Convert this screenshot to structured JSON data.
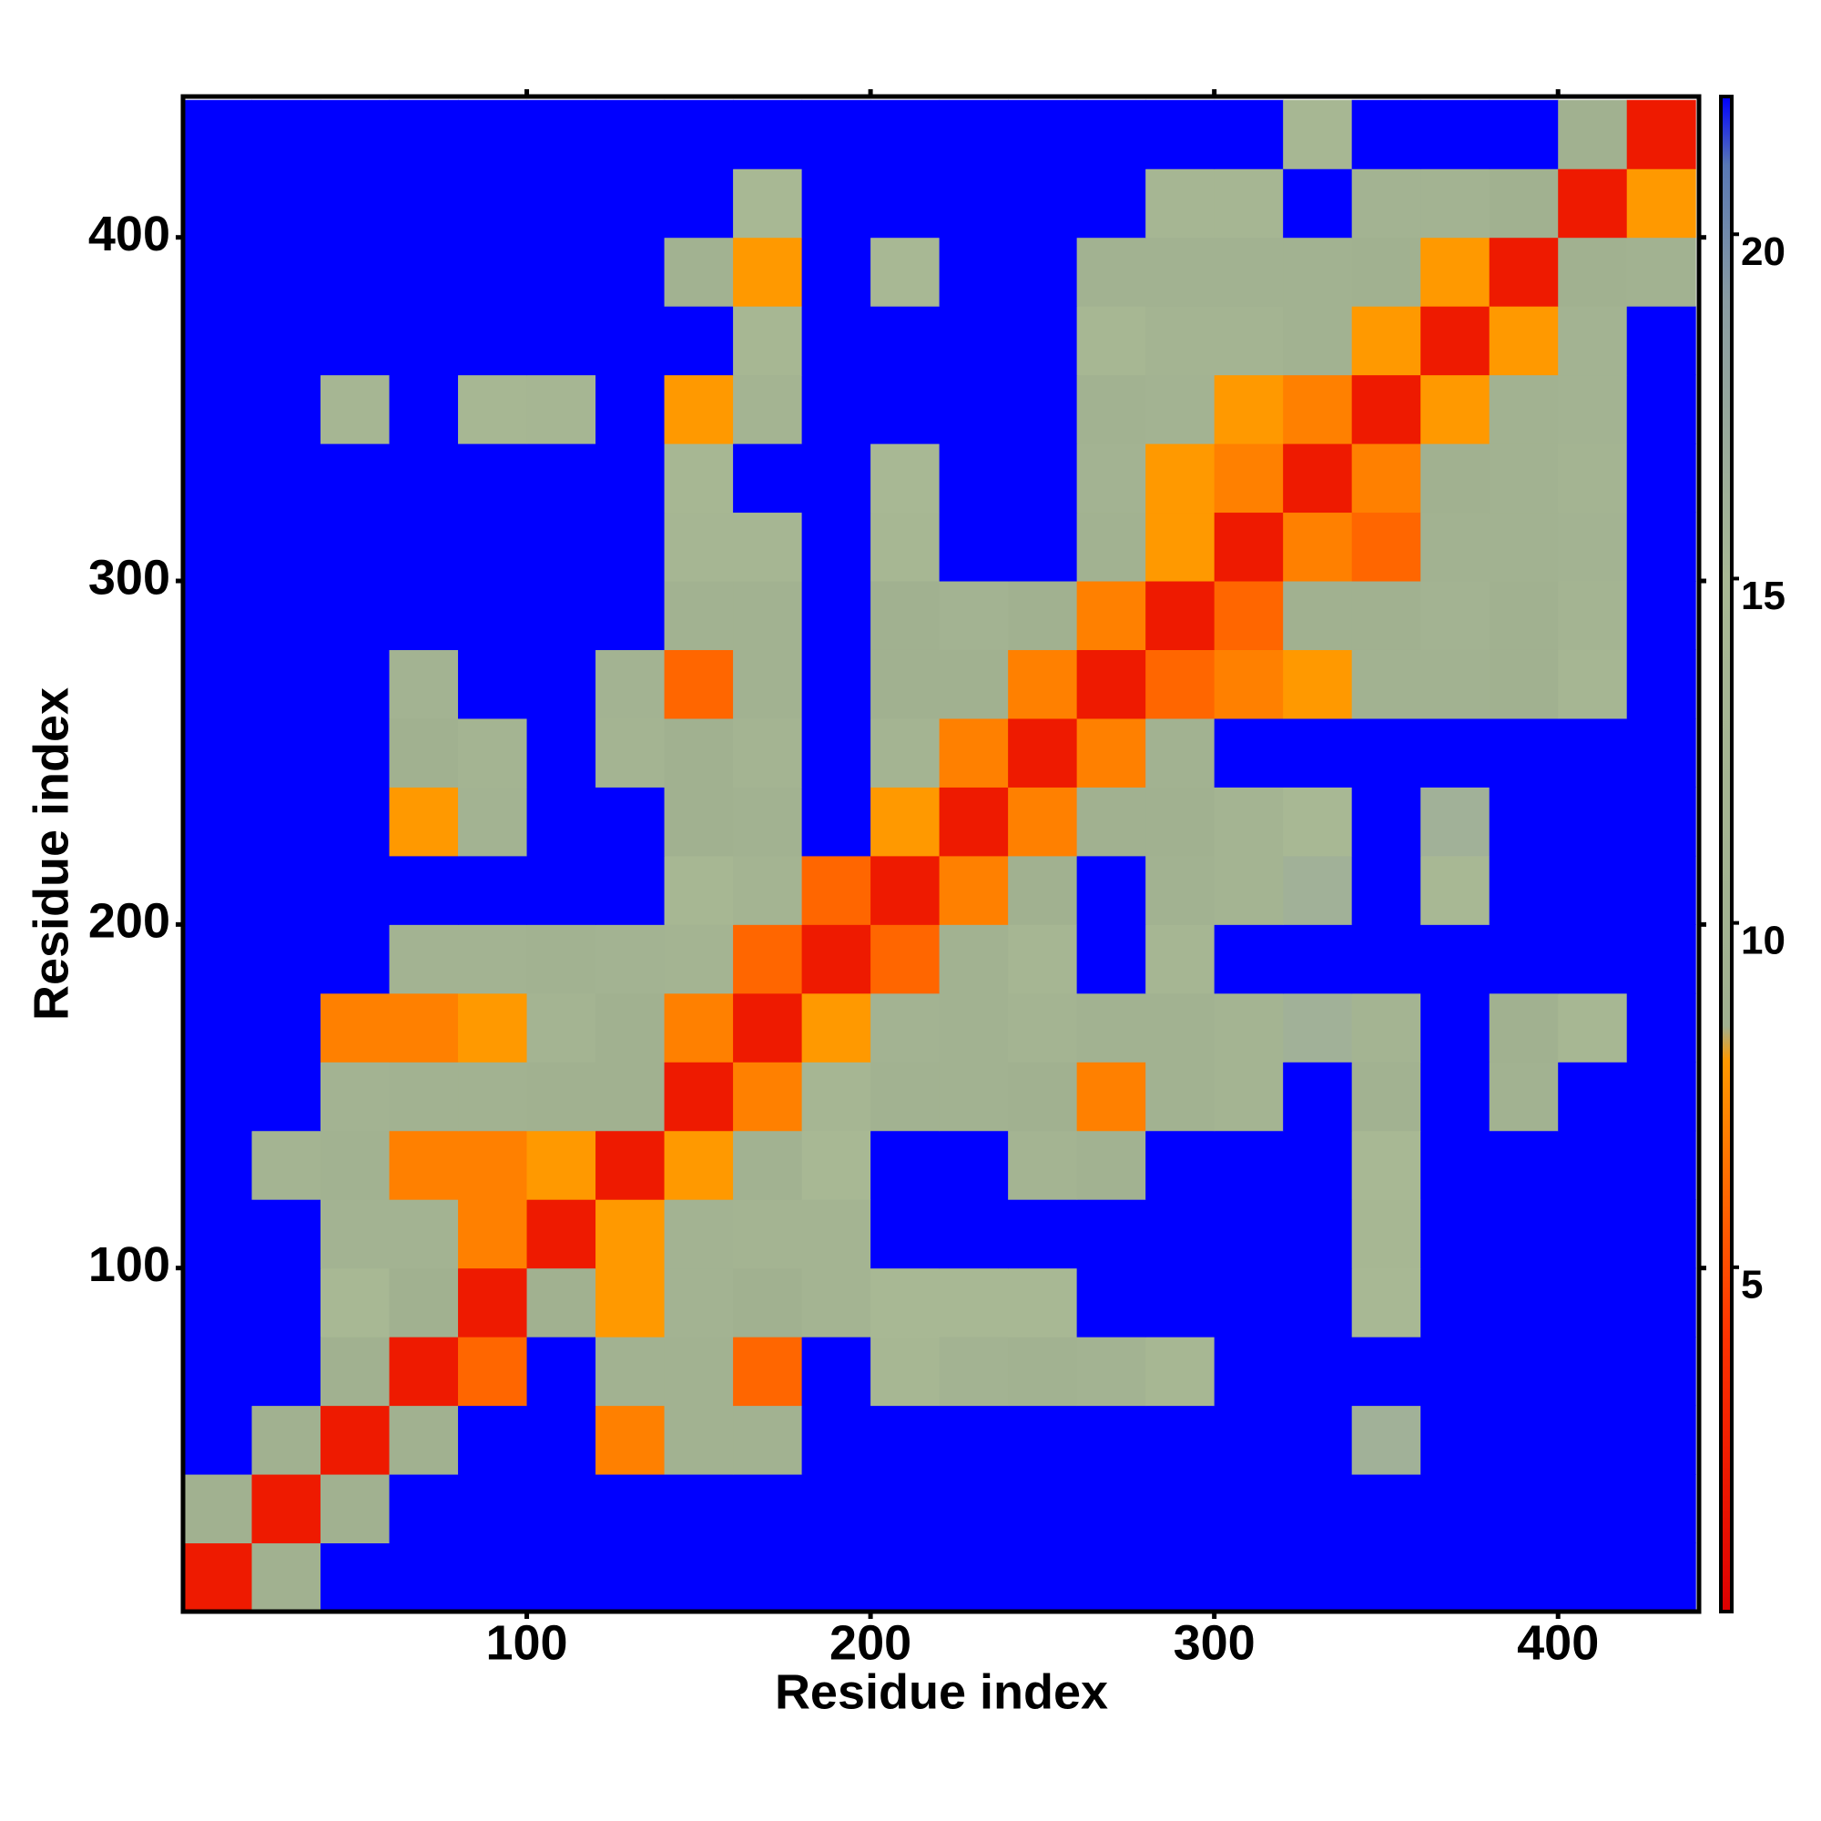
{
  "chart_data": {
    "type": "heatmap",
    "x_label": "Residue index",
    "y_label": "Residue index",
    "xlim": [
      0,
      441
    ],
    "ylim": [
      0,
      441
    ],
    "xticks": [
      100,
      200,
      300,
      400
    ],
    "yticks": [
      100,
      200,
      300,
      400
    ],
    "x_bins": [
      0,
      20,
      40,
      60,
      80,
      100,
      120,
      140,
      160,
      180,
      200,
      220,
      240,
      260,
      280,
      300,
      320,
      340,
      360,
      380,
      400,
      420,
      440
    ],
    "y_bins": [
      0,
      20,
      40,
      60,
      80,
      100,
      120,
      140,
      160,
      180,
      200,
      220,
      240,
      260,
      280,
      300,
      320,
      340,
      360,
      380,
      400,
      420,
      440
    ],
    "zlim": [
      0,
      22
    ],
    "zticks": [
      5,
      10,
      15,
      20
    ],
    "colorscale": [
      [
        0,
        "#dd0000"
      ],
      [
        4,
        "#ff3300"
      ],
      [
        8,
        "#ff9900"
      ],
      [
        8.5,
        "#a0b090"
      ],
      [
        15,
        "#a8b894"
      ],
      [
        19,
        "#8a9ca2"
      ],
      [
        21,
        "#5878b4"
      ],
      [
        22,
        "#0000ff"
      ]
    ],
    "z": [
      [
        2,
        9,
        22,
        22,
        22,
        22,
        22,
        22,
        22,
        22,
        22,
        22,
        22,
        22,
        22,
        22,
        22,
        22,
        22,
        22,
        22,
        22
      ],
      [
        9,
        2,
        9,
        22,
        22,
        22,
        22,
        22,
        22,
        22,
        22,
        22,
        22,
        22,
        22,
        22,
        22,
        22,
        22,
        22,
        22,
        22
      ],
      [
        22,
        9,
        2,
        9,
        22,
        22,
        7,
        10,
        10,
        22,
        22,
        22,
        22,
        22,
        22,
        22,
        22,
        16,
        22,
        22,
        22,
        22
      ],
      [
        22,
        22,
        9,
        2,
        6,
        22,
        10,
        10,
        6,
        22,
        14,
        11,
        10,
        11,
        14,
        22,
        22,
        22,
        22,
        22,
        22,
        22
      ],
      [
        22,
        22,
        15,
        9,
        2,
        9,
        8,
        11,
        9,
        12,
        15,
        15,
        15,
        22,
        22,
        22,
        22,
        15,
        22,
        22,
        22,
        22
      ],
      [
        22,
        22,
        11,
        11,
        7,
        2,
        8,
        11,
        12,
        12,
        22,
        22,
        22,
        22,
        22,
        22,
        22,
        14,
        22,
        22,
        22,
        22
      ],
      [
        22,
        12,
        10,
        7,
        7,
        8,
        2,
        8,
        10,
        15,
        22,
        22,
        12,
        10,
        22,
        22,
        22,
        15,
        22,
        22,
        22,
        22
      ],
      [
        22,
        22,
        11,
        10,
        10,
        9,
        9,
        2,
        7,
        13,
        10,
        10,
        9,
        7,
        10,
        12,
        22,
        10,
        22,
        10,
        22,
        22
      ],
      [
        22,
        22,
        7,
        7,
        8,
        12,
        9,
        7,
        2,
        8,
        11,
        10,
        12,
        10,
        10,
        12,
        16,
        12,
        22,
        9,
        14,
        22
      ],
      [
        22,
        22,
        22,
        11,
        11,
        10,
        11,
        12,
        6,
        2,
        6,
        10,
        13,
        22,
        13,
        22,
        22,
        22,
        22,
        22,
        22,
        22
      ],
      [
        22,
        22,
        22,
        22,
        22,
        22,
        22,
        14,
        12,
        6,
        2,
        7,
        9,
        22,
        10,
        12,
        16,
        22,
        15,
        22,
        22,
        22
      ],
      [
        22,
        22,
        22,
        8,
        11,
        22,
        22,
        9,
        10,
        22,
        8,
        2,
        7,
        9,
        9,
        12,
        15,
        22,
        16,
        22,
        22,
        22
      ],
      [
        22,
        22,
        22,
        9,
        12,
        22,
        12,
        9,
        12,
        22,
        12,
        7,
        2,
        7,
        10,
        22,
        22,
        22,
        22,
        22,
        22,
        22
      ],
      [
        22,
        22,
        22,
        11,
        22,
        22,
        11,
        6,
        10,
        22,
        9,
        9,
        7,
        2,
        6,
        7,
        8,
        10,
        10,
        9,
        13,
        22
      ],
      [
        22,
        22,
        22,
        22,
        22,
        22,
        22,
        10,
        10,
        22,
        9,
        11,
        9,
        7,
        2,
        6,
        9,
        9,
        11,
        9,
        12,
        22
      ],
      [
        22,
        22,
        22,
        22,
        22,
        22,
        22,
        13,
        13,
        22,
        14,
        22,
        22,
        10,
        8,
        2,
        7,
        6,
        10,
        10,
        11,
        22
      ],
      [
        22,
        22,
        22,
        22,
        22,
        22,
        22,
        14,
        22,
        22,
        15,
        22,
        22,
        11,
        8,
        7,
        2,
        7,
        9,
        10,
        12,
        22
      ],
      [
        22,
        22,
        13,
        22,
        14,
        13,
        22,
        8,
        12,
        22,
        22,
        22,
        22,
        10,
        11,
        8,
        7,
        2,
        8,
        10,
        11,
        22
      ],
      [
        22,
        22,
        22,
        22,
        22,
        22,
        22,
        22,
        14,
        22,
        22,
        22,
        22,
        14,
        12,
        12,
        10,
        8,
        2,
        8,
        11,
        22
      ],
      [
        22,
        22,
        22,
        22,
        22,
        22,
        22,
        10,
        8,
        22,
        15,
        22,
        22,
        10,
        10,
        10,
        10,
        9,
        8,
        2,
        9,
        10
      ],
      [
        22,
        22,
        22,
        22,
        22,
        22,
        22,
        22,
        15,
        22,
        22,
        22,
        22,
        22,
        13,
        13,
        22,
        11,
        11,
        9,
        2,
        8
      ],
      [
        22,
        22,
        22,
        22,
        22,
        22,
        22,
        22,
        22,
        22,
        22,
        22,
        22,
        22,
        22,
        22,
        14,
        22,
        22,
        22,
        9,
        2
      ]
    ]
  }
}
